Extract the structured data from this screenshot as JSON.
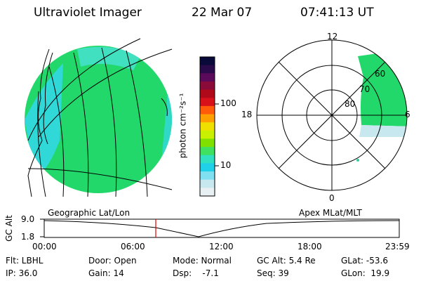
{
  "header": {
    "title": "Ultraviolet Imager",
    "date": "22 Mar 07",
    "time": "07:41:13 UT"
  },
  "colorbar": {
    "label": "photon cm⁻²s⁻¹",
    "ticks": [
      "100",
      "10"
    ],
    "colors": [
      "#0a0a3a",
      "#2a0a4a",
      "#5a0a5a",
      "#8a0a3a",
      "#b00a1a",
      "#d8101a",
      "#ff5a0a",
      "#ffa000",
      "#f0e000",
      "#c8f000",
      "#80e000",
      "#40e060",
      "#30e0c0",
      "#20d0e8",
      "#80e0f0",
      "#c8e8f0",
      "#e8f0f4"
    ]
  },
  "polar": {
    "labels": {
      "top": "12",
      "left": "18",
      "right": "6",
      "bottom": "0"
    },
    "lat_labels": [
      "60",
      "70",
      "80"
    ]
  },
  "strip": {
    "left_title": "Geographic Lat/Lon",
    "right_title": "Apex MLat/MLT",
    "ylabel": "GC Alt",
    "yticks": [
      "9.0",
      "1.8"
    ],
    "xticks": [
      "00:00",
      "06:00",
      "12:00",
      "18:00",
      "23:59"
    ]
  },
  "info": {
    "row1": {
      "flt": "Flt: LBHL",
      "door": "Door: Open",
      "mode": "Mode: Normal",
      "gcalt": "GC Alt: 5.4 Re",
      "glat": "GLat: -53.6"
    },
    "row2": {
      "ip": "IP: 36.0",
      "gain": "Gain: 14",
      "dsp": "Dsp:    -7.1",
      "seq": "Seq: 39",
      "glon": "GLon:  19.9"
    }
  }
}
